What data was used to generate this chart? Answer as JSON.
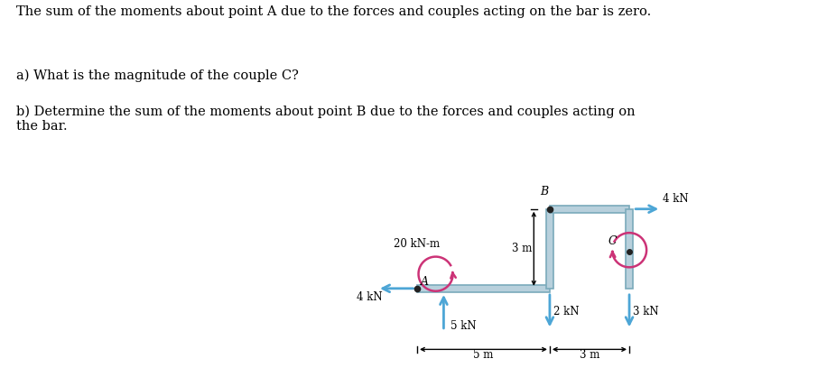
{
  "title_line1": "The sum of the moments about point A due to the forces and couples acting on the bar is zero.",
  "question_a": "a) What is the magnitude of the couple C?",
  "question_b": "b) Determine the sum of the moments about point B due to the forces and couples acting on\nthe bar.",
  "bar_color": "#b8d0dc",
  "bar_edge_color": "#7aaabb",
  "arrow_color": "#4da6d6",
  "couple_color": "#cc3377",
  "text_color": "#000000",
  "background_color": "#ffffff",
  "fig_width": 9.26,
  "fig_height": 4.18,
  "bar_thickness": 0.28
}
